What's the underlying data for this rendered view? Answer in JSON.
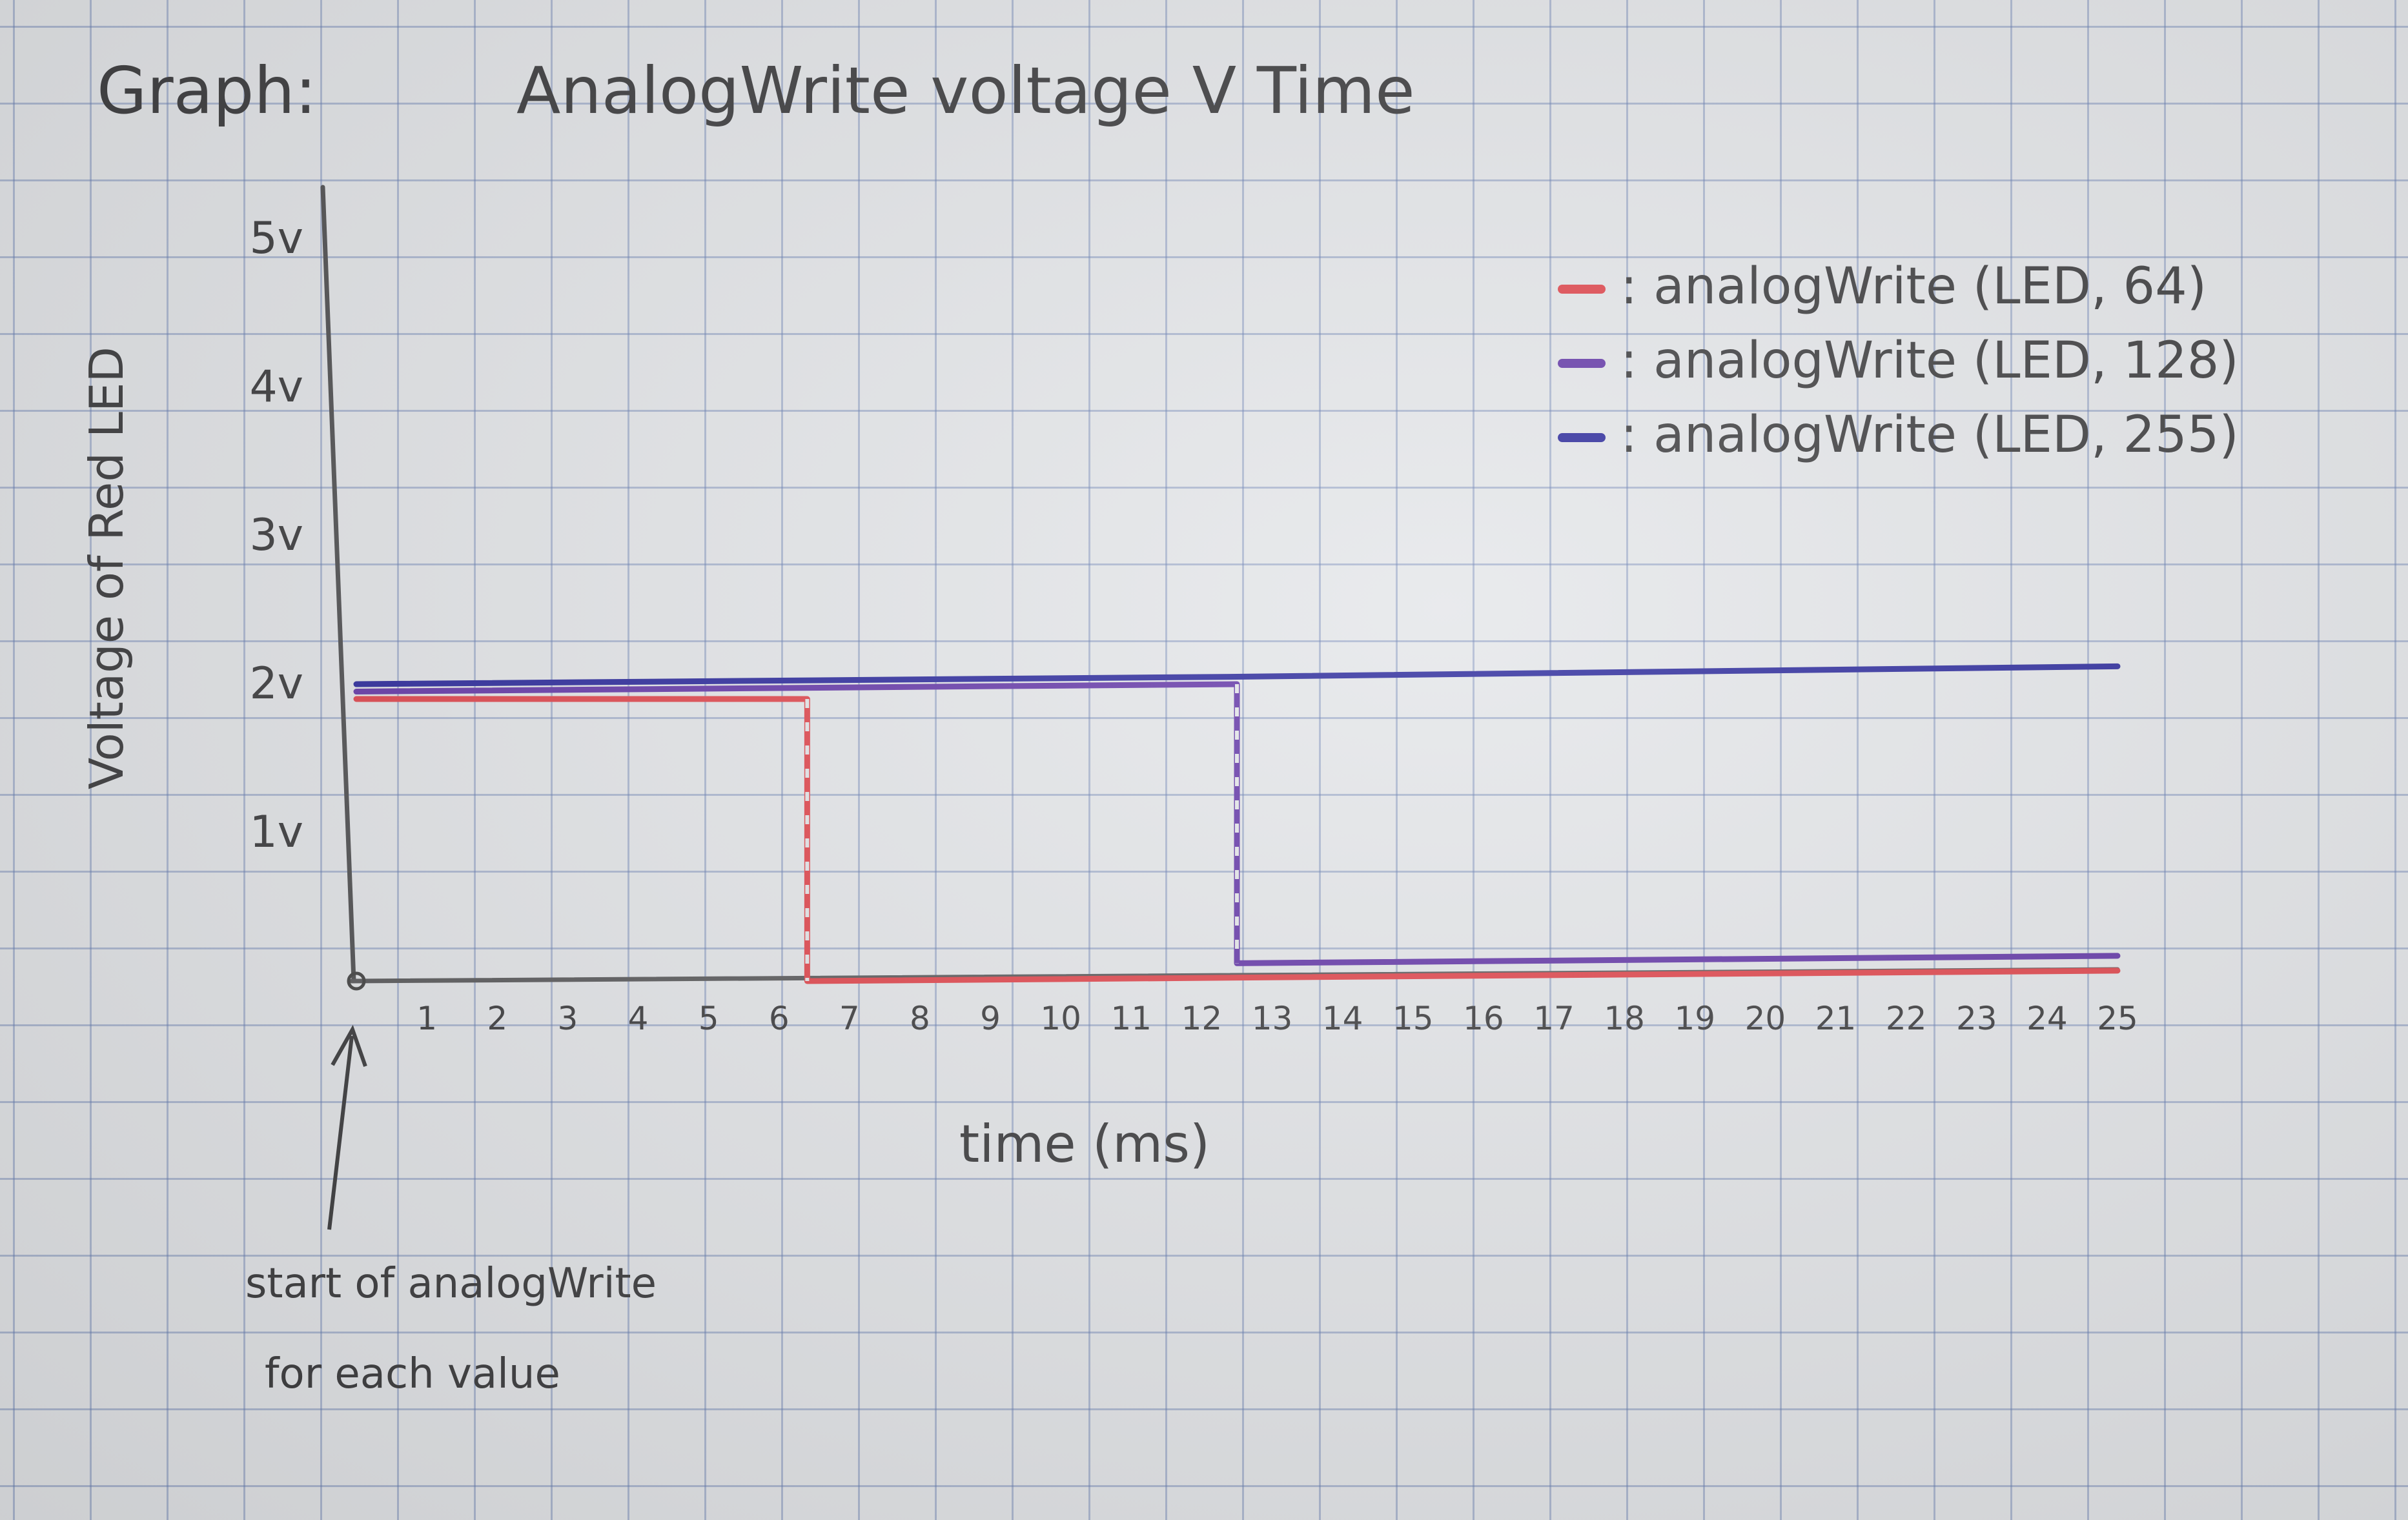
{
  "chart_data": {
    "type": "line",
    "title_prefix": "Graph:",
    "title": "AnalogWrite voltage V Time",
    "xlabel": "time (ms)",
    "ylabel": "Voltage of Red LED",
    "x_ticks": [
      "1",
      "2",
      "3",
      "4",
      "5",
      "6",
      "7",
      "8",
      "9",
      "10",
      "11",
      "12",
      "13",
      "14",
      "15",
      "16",
      "17",
      "18",
      "19",
      "20",
      "21",
      "22",
      "23",
      "24",
      "25"
    ],
    "y_ticks": [
      "1v",
      "2v",
      "3v",
      "4v",
      "5v"
    ],
    "xlim": [
      0,
      25
    ],
    "ylim": [
      0,
      5
    ],
    "grid": true,
    "legend_position": "top-right",
    "series": [
      {
        "name": ": analogWrite (LED, 64)",
        "color": "#e0454c",
        "x": [
          0,
          6.4,
          6.4,
          25
        ],
        "y": [
          1.9,
          1.9,
          0,
          0.07
        ]
      },
      {
        "name": ": analogWrite (LED, 128)",
        "color": "#6438a8",
        "x": [
          0,
          12.5,
          12.5,
          25
        ],
        "y": [
          1.95,
          2.0,
          0.12,
          0.17
        ]
      },
      {
        "name": ": analogWrite (LED, 255)",
        "color": "#2c2a9c",
        "x": [
          0,
          12.5,
          25
        ],
        "y": [
          2.0,
          2.05,
          2.12
        ]
      }
    ],
    "annotation": {
      "line1": "start of analogWrite",
      "line2": "for each value"
    }
  }
}
